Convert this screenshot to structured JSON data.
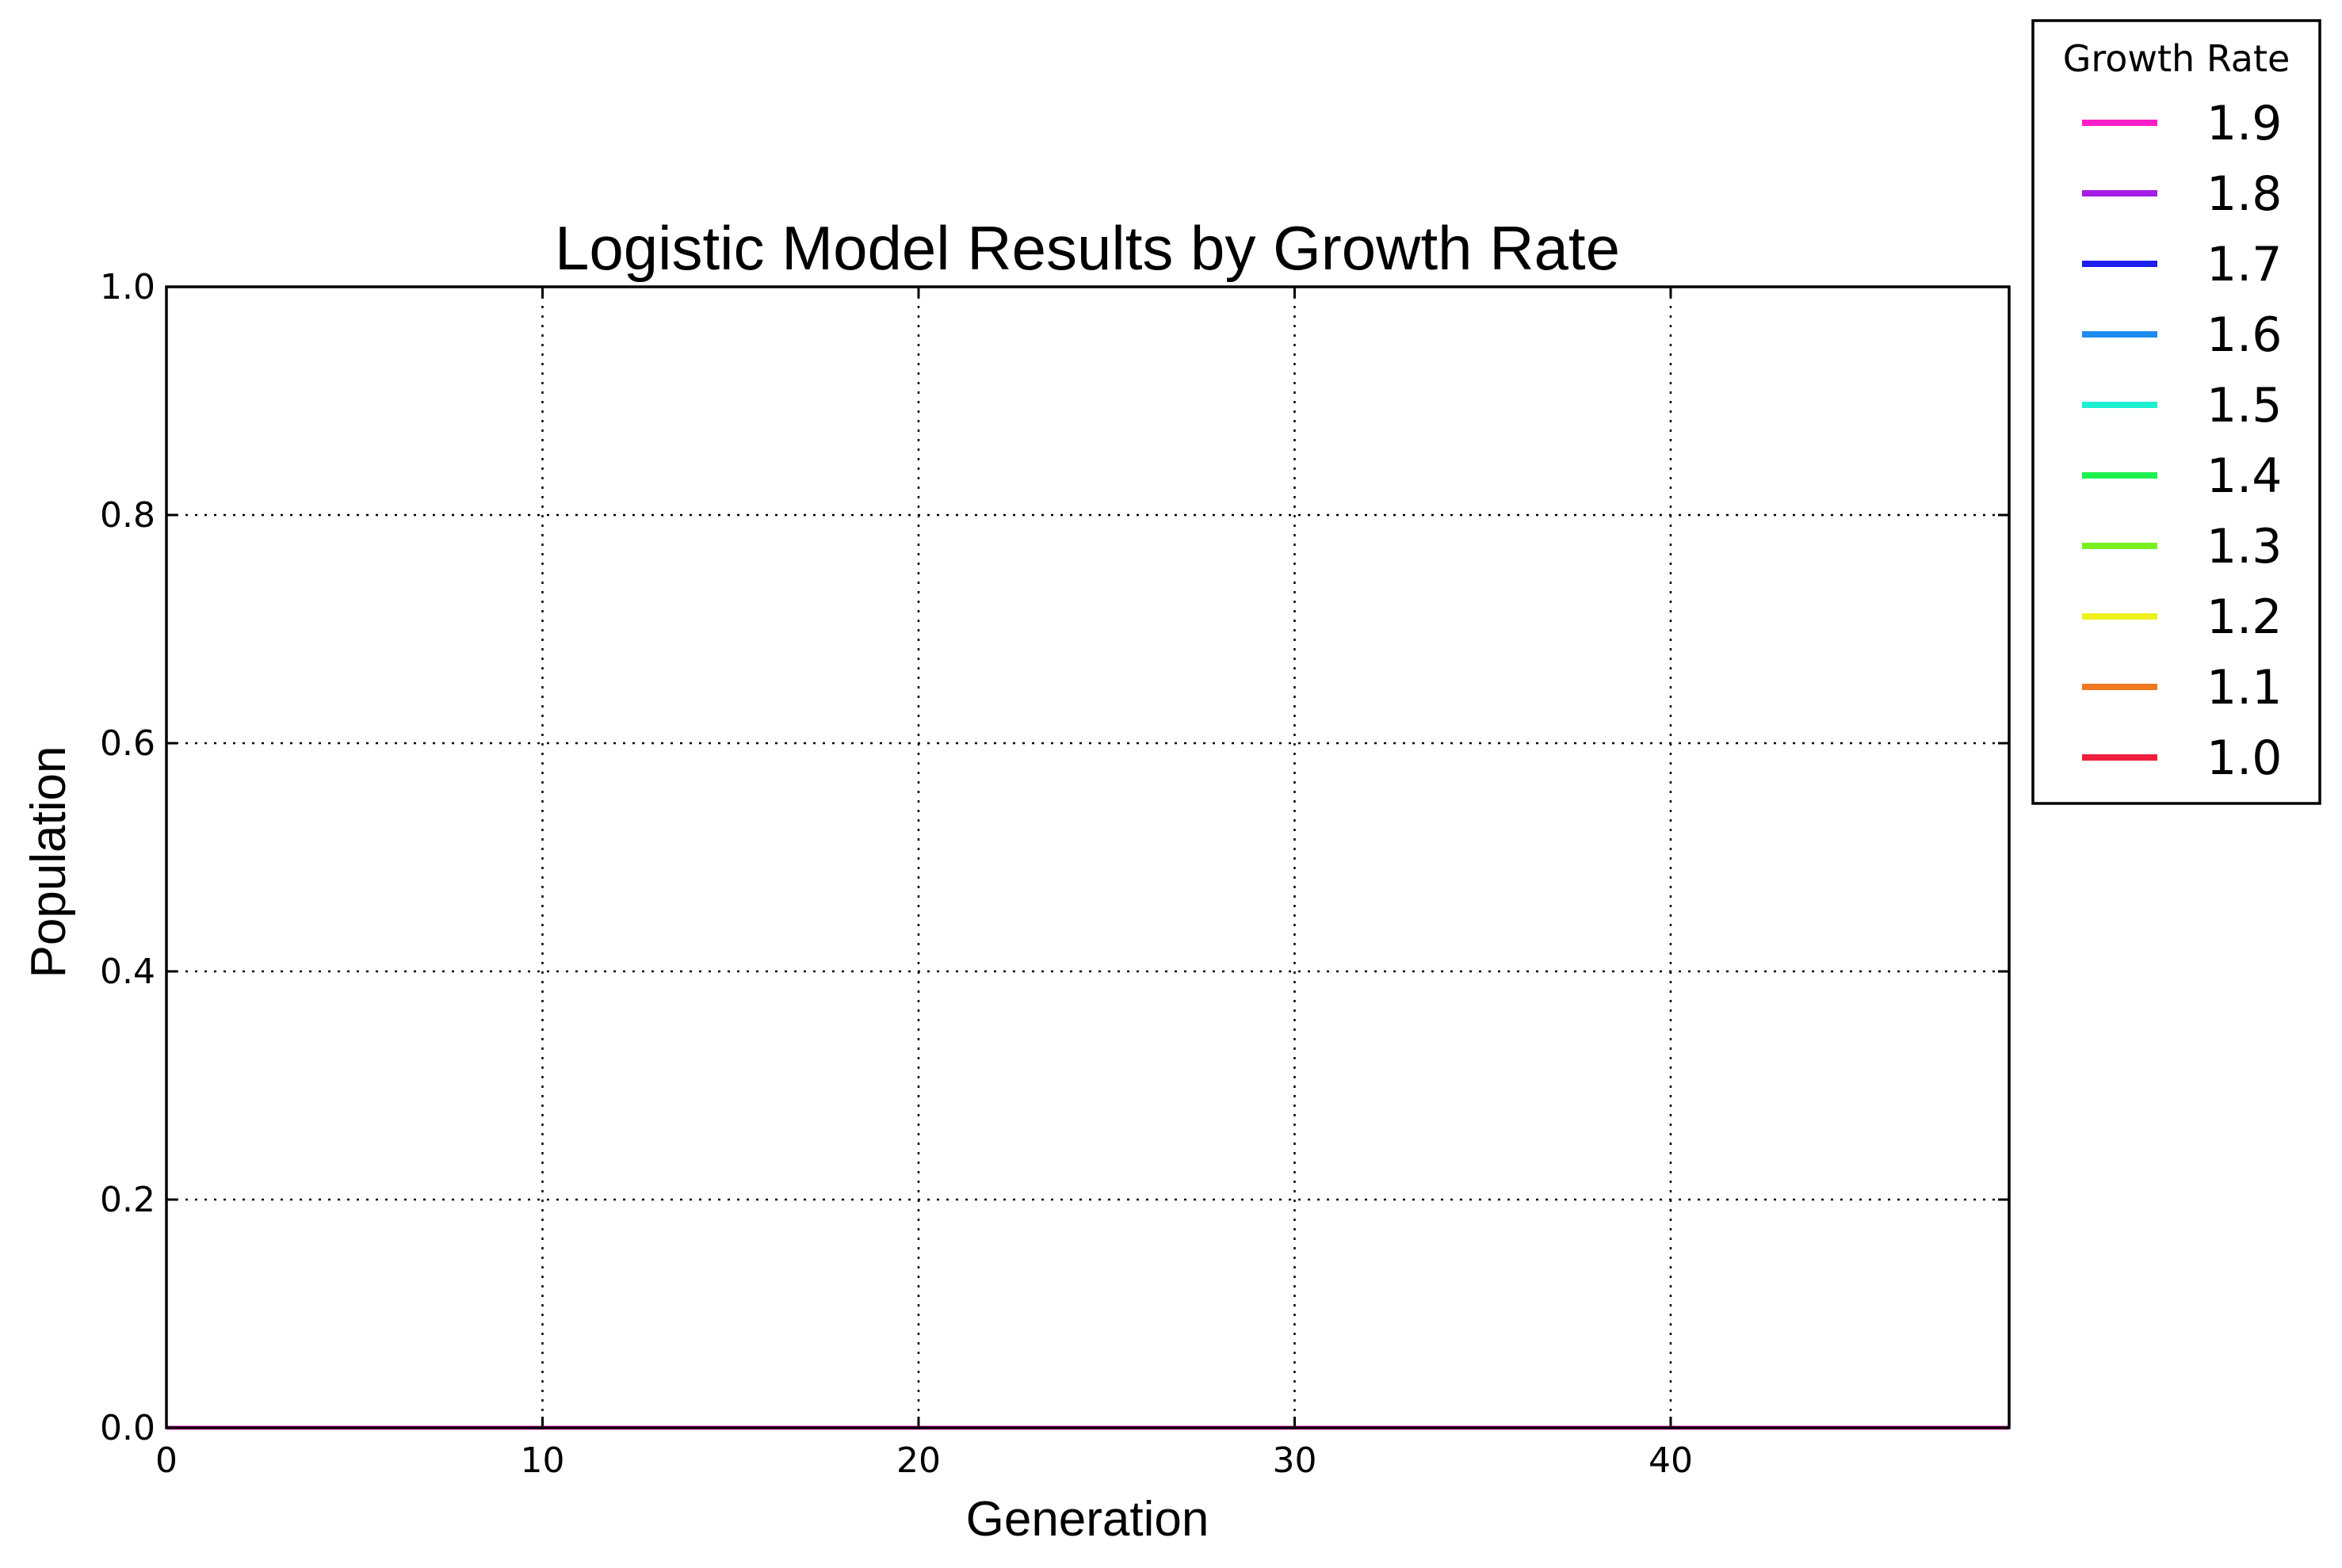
{
  "chart_data": {
    "type": "line",
    "title": "Logistic Model Results by Growth Rate",
    "xlabel": "Generation",
    "ylabel": "Population",
    "xlim": [
      0,
      49
    ],
    "ylim": [
      0,
      1.0
    ],
    "x_ticks": [
      0,
      10,
      20,
      30,
      40
    ],
    "x_tick_labels": [
      "0",
      "10",
      "20",
      "30",
      "40"
    ],
    "y_ticks": [
      0,
      0.2,
      0.4,
      0.6,
      0.8,
      1.0
    ],
    "y_tick_labels": [
      "0.0",
      "0.2",
      "0.4",
      "0.6",
      "0.8",
      "1.0"
    ],
    "grid": true,
    "legend_title": "Growth Rate",
    "legend_position": "outside-top-right",
    "x": [
      0,
      49
    ],
    "series": [
      {
        "name": "1.9",
        "color": "#ff1ec8",
        "values": [
          0,
          0
        ]
      },
      {
        "name": "1.8",
        "color": "#a31ee8",
        "values": [
          0,
          0
        ]
      },
      {
        "name": "1.7",
        "color": "#1e1ef0",
        "values": [
          0,
          0
        ]
      },
      {
        "name": "1.6",
        "color": "#1e8cf0",
        "values": [
          0,
          0
        ]
      },
      {
        "name": "1.5",
        "color": "#1ef0d2",
        "values": [
          0,
          0
        ]
      },
      {
        "name": "1.4",
        "color": "#1ef050",
        "values": [
          0,
          0
        ]
      },
      {
        "name": "1.3",
        "color": "#78f01e",
        "values": [
          0,
          0
        ]
      },
      {
        "name": "1.2",
        "color": "#f0f01e",
        "values": [
          0,
          0
        ]
      },
      {
        "name": "1.1",
        "color": "#f0781e",
        "values": [
          0,
          0
        ]
      },
      {
        "name": "1.0",
        "color": "#f01e3c",
        "values": [
          0,
          0
        ]
      }
    ]
  }
}
